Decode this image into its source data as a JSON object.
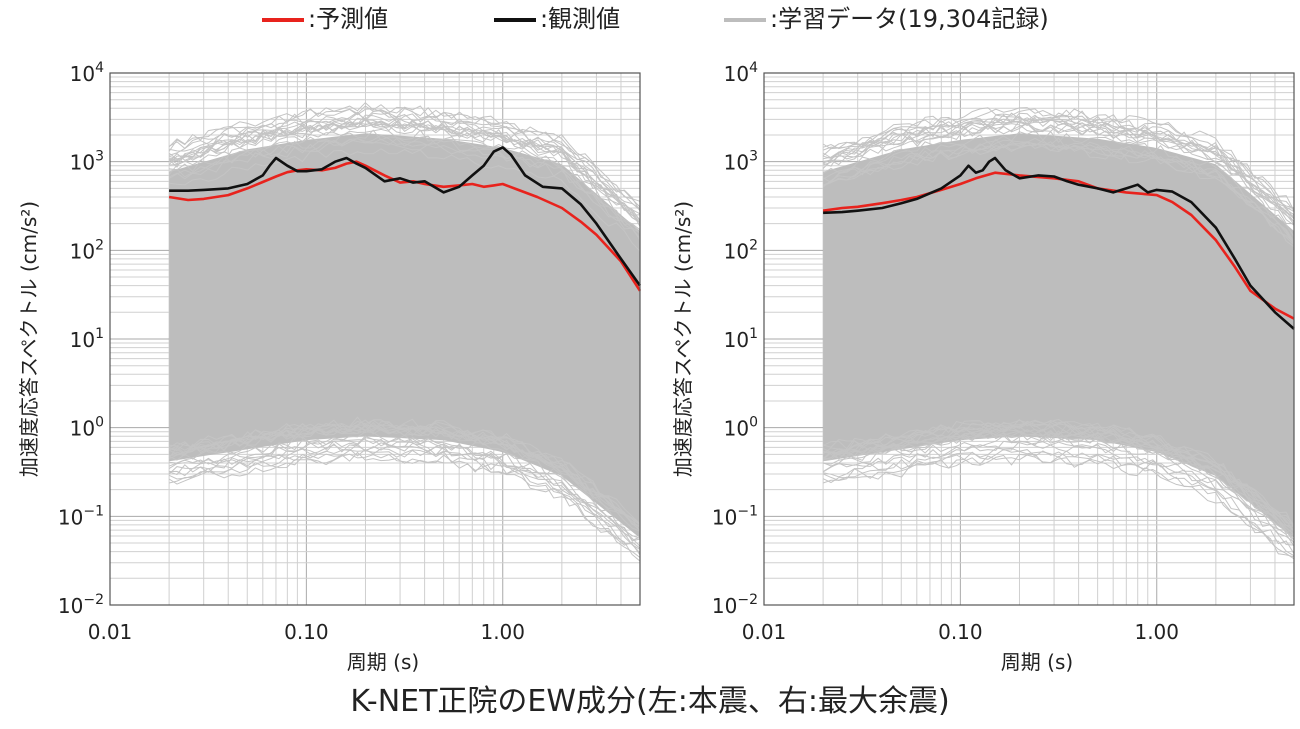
{
  "legend": {
    "items": [
      {
        "label": ":予測値",
        "color": "#e8231d"
      },
      {
        "label": ":観測値",
        "color": "#111111"
      },
      {
        "label": ":学習データ(19,304記録)",
        "color": "#bdbdbd"
      }
    ]
  },
  "caption": "K-NET正院のEW成分(左:本震、右:最大余震)",
  "chart_data": [
    {
      "type": "line",
      "xscale": "log",
      "yscale": "log",
      "xlabel": "周期 (s)",
      "ylabel": "加速度応答スペクトル (cm/s²)",
      "xlim": [
        0.01,
        5
      ],
      "ylim": [
        0.01,
        10000
      ],
      "xticks": [
        "0.01",
        "0.10",
        "1.00"
      ],
      "yticks": [
        "10^-2",
        "10^-1",
        "10^0",
        "10^1",
        "10^2",
        "10^3",
        "10^4"
      ],
      "grid": true,
      "training_envelope": {
        "color": "#bdbdbd",
        "x": [
          0.02,
          0.05,
          0.1,
          0.2,
          0.5,
          1.0,
          2.0,
          5.0
        ],
        "upper": [
          1400,
          2500,
          3200,
          3800,
          3300,
          2600,
          1700,
          300
        ],
        "lower": [
          0.22,
          0.3,
          0.38,
          0.42,
          0.38,
          0.28,
          0.15,
          0.03
        ]
      },
      "series": [
        {
          "name": "予測値",
          "color": "#e8231d",
          "x": [
            0.02,
            0.025,
            0.03,
            0.04,
            0.05,
            0.06,
            0.07,
            0.08,
            0.09,
            0.1,
            0.12,
            0.14,
            0.16,
            0.18,
            0.2,
            0.25,
            0.3,
            0.35,
            0.4,
            0.5,
            0.6,
            0.7,
            0.8,
            0.9,
            1.0,
            1.2,
            1.5,
            2.0,
            2.5,
            3.0,
            4.0,
            5.0
          ],
          "y": [
            400,
            370,
            380,
            420,
            500,
            590,
            680,
            760,
            800,
            820,
            800,
            850,
            950,
            1000,
            900,
            700,
            580,
            600,
            560,
            520,
            540,
            560,
            520,
            540,
            560,
            480,
            400,
            300,
            210,
            150,
            75,
            35
          ]
        },
        {
          "name": "観測値",
          "color": "#111111",
          "x": [
            0.02,
            0.025,
            0.03,
            0.04,
            0.05,
            0.06,
            0.065,
            0.07,
            0.08,
            0.09,
            0.1,
            0.12,
            0.14,
            0.16,
            0.18,
            0.2,
            0.25,
            0.3,
            0.35,
            0.4,
            0.5,
            0.6,
            0.7,
            0.8,
            0.9,
            1.0,
            1.1,
            1.3,
            1.6,
            2.0,
            2.5,
            3.0,
            4.0,
            5.0
          ],
          "y": [
            470,
            470,
            480,
            500,
            560,
            700,
            900,
            1100,
            900,
            780,
            780,
            820,
            1000,
            1100,
            950,
            850,
            600,
            650,
            580,
            600,
            450,
            520,
            700,
            900,
            1300,
            1450,
            1200,
            700,
            520,
            500,
            330,
            200,
            80,
            40
          ]
        }
      ]
    },
    {
      "type": "line",
      "xscale": "log",
      "yscale": "log",
      "xlabel": "周期 (s)",
      "ylabel": "加速度応答スペクトル (cm/s²)",
      "xlim": [
        0.01,
        5
      ],
      "ylim": [
        0.01,
        10000
      ],
      "xticks": [
        "0.01",
        "0.10",
        "1.00"
      ],
      "yticks": [
        "10^-2",
        "10^-1",
        "10^0",
        "10^1",
        "10^2",
        "10^3",
        "10^4"
      ],
      "grid": true,
      "training_envelope": {
        "color": "#bdbdbd",
        "x": [
          0.02,
          0.05,
          0.1,
          0.2,
          0.5,
          1.0,
          2.0,
          5.0
        ],
        "upper": [
          1400,
          2500,
          3200,
          3800,
          3300,
          2600,
          1700,
          300
        ],
        "lower": [
          0.22,
          0.3,
          0.38,
          0.42,
          0.38,
          0.28,
          0.15,
          0.03
        ]
      },
      "series": [
        {
          "name": "予測値",
          "color": "#e8231d",
          "x": [
            0.02,
            0.025,
            0.03,
            0.04,
            0.05,
            0.06,
            0.08,
            0.1,
            0.12,
            0.15,
            0.2,
            0.3,
            0.4,
            0.5,
            0.7,
            1.0,
            1.2,
            1.5,
            2.0,
            2.5,
            3.0,
            4.0,
            5.0
          ],
          "y": [
            280,
            300,
            310,
            340,
            370,
            400,
            480,
            560,
            650,
            750,
            700,
            650,
            600,
            500,
            450,
            420,
            350,
            250,
            130,
            65,
            35,
            22,
            17
          ]
        },
        {
          "name": "観測値",
          "color": "#111111",
          "x": [
            0.02,
            0.025,
            0.03,
            0.04,
            0.05,
            0.06,
            0.08,
            0.1,
            0.11,
            0.12,
            0.13,
            0.14,
            0.15,
            0.17,
            0.2,
            0.25,
            0.3,
            0.35,
            0.4,
            0.5,
            0.6,
            0.7,
            0.8,
            0.9,
            1.0,
            1.2,
            1.5,
            2.0,
            2.5,
            3.0,
            4.0,
            5.0
          ],
          "y": [
            265,
            270,
            280,
            300,
            340,
            380,
            500,
            700,
            900,
            750,
            800,
            1000,
            1100,
            800,
            650,
            700,
            680,
            600,
            550,
            500,
            450,
            500,
            550,
            450,
            480,
            460,
            350,
            180,
            80,
            40,
            20,
            13
          ]
        }
      ]
    }
  ]
}
